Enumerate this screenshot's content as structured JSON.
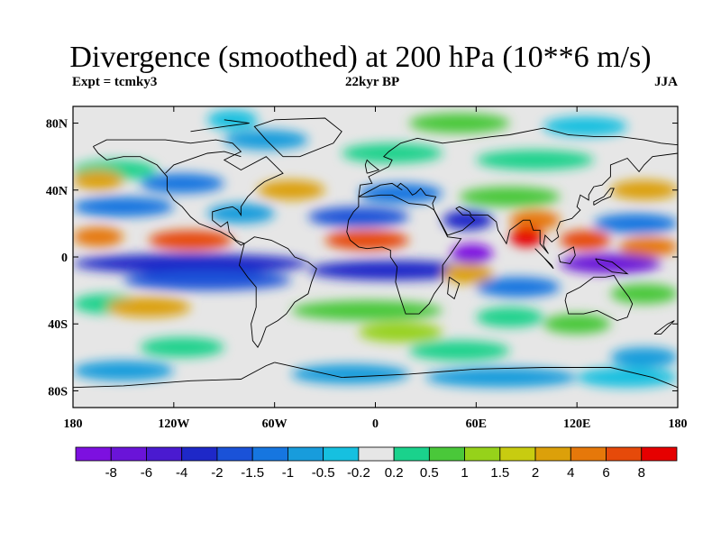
{
  "title": "Divergence (smoothed) at 200 hPa (10**6 m/s)",
  "subtitle_left": "Expt = tcmky3",
  "subtitle_center": "22kyr BP",
  "subtitle_right": "JJA",
  "lat_ticks": [
    {
      "label": "80N",
      "lat": 80
    },
    {
      "label": "40N",
      "lat": 40
    },
    {
      "label": "0",
      "lat": 0
    },
    {
      "label": "40S",
      "lat": -40
    },
    {
      "label": "80S",
      "lat": -80
    }
  ],
  "lon_ticks": [
    {
      "label": "180",
      "lon": -180
    },
    {
      "label": "120W",
      "lon": -120
    },
    {
      "label": "60W",
      "lon": -60
    },
    {
      "label": "0",
      "lon": 0
    },
    {
      "label": "60E",
      "lon": 60
    },
    {
      "label": "120E",
      "lon": 120
    },
    {
      "label": "180",
      "lon": 180
    }
  ],
  "colorbar": {
    "colors": [
      "#7d10e0",
      "#6a14d8",
      "#4a1ad0",
      "#1e28c8",
      "#1a52d8",
      "#1676e0",
      "#189cdc",
      "#16c0e0",
      "#e6e6e6",
      "#1ad28c",
      "#4ac83a",
      "#96d21a",
      "#c8cc10",
      "#dca00a",
      "#e6780a",
      "#e64a0a",
      "#e60000"
    ],
    "labels": [
      "-8",
      "-6",
      "-4",
      "-2",
      "-1.5",
      "-1",
      "-0.5",
      "-0.2",
      "0.2",
      "0.5",
      "1",
      "1.5",
      "2",
      "4",
      "6",
      "8"
    ]
  },
  "field_bands": [
    {
      "lat": 82,
      "lon_from": -100,
      "lon_to": -70,
      "color": "#16c0e0"
    },
    {
      "lat": 80,
      "lon_from": 20,
      "lon_to": 80,
      "color": "#4ac83a"
    },
    {
      "lat": 78,
      "lon_from": 100,
      "lon_to": 150,
      "color": "#16c0e0"
    },
    {
      "lat": 70,
      "lon_from": -90,
      "lon_to": -40,
      "color": "#189cdc"
    },
    {
      "lat": 62,
      "lon_from": -20,
      "lon_to": 40,
      "color": "#1ad28c"
    },
    {
      "lat": 58,
      "lon_from": 60,
      "lon_to": 130,
      "color": "#1ad28c"
    },
    {
      "lat": 52,
      "lon_from": -180,
      "lon_to": -130,
      "color": "#1ad28c"
    },
    {
      "lat": 46,
      "lon_from": -180,
      "lon_to": -150,
      "color": "#dca00a"
    },
    {
      "lat": 44,
      "lon_from": -140,
      "lon_to": -90,
      "color": "#1676e0"
    },
    {
      "lat": 40,
      "lon_from": -70,
      "lon_to": -30,
      "color": "#dca00a"
    },
    {
      "lat": 38,
      "lon_from": -10,
      "lon_to": 40,
      "color": "#1676e0"
    },
    {
      "lat": 36,
      "lon_from": 50,
      "lon_to": 110,
      "color": "#4ac83a"
    },
    {
      "lat": 40,
      "lon_from": 140,
      "lon_to": 180,
      "color": "#dca00a"
    },
    {
      "lat": 30,
      "lon_from": -180,
      "lon_to": -120,
      "color": "#1676e0"
    },
    {
      "lat": 26,
      "lon_from": -100,
      "lon_to": -60,
      "color": "#189cdc"
    },
    {
      "lat": 24,
      "lon_from": -40,
      "lon_to": 20,
      "color": "#1a52d8"
    },
    {
      "lat": 22,
      "lon_from": 40,
      "lon_to": 70,
      "color": "#1e28c8"
    },
    {
      "lat": 22,
      "lon_from": 80,
      "lon_to": 110,
      "color": "#e6780a"
    },
    {
      "lat": 20,
      "lon_from": 130,
      "lon_to": 180,
      "color": "#1676e0"
    },
    {
      "lat": 12,
      "lon_from": -180,
      "lon_to": -150,
      "color": "#e6780a"
    },
    {
      "lat": 10,
      "lon_from": -135,
      "lon_to": -85,
      "color": "#e64a0a"
    },
    {
      "lat": 10,
      "lon_from": -30,
      "lon_to": 20,
      "color": "#e64a0a"
    },
    {
      "lat": 12,
      "lon_from": 80,
      "lon_to": 100,
      "color": "#e60000"
    },
    {
      "lat": 10,
      "lon_from": 110,
      "lon_to": 140,
      "color": "#e64a0a"
    },
    {
      "lat": 6,
      "lon_from": 145,
      "lon_to": 180,
      "color": "#e6780a"
    },
    {
      "lat": 2,
      "lon_from": 45,
      "lon_to": 70,
      "color": "#7d10e0"
    },
    {
      "lat": -4,
      "lon_from": -180,
      "lon_to": -40,
      "color": "#1e28c8"
    },
    {
      "lat": -8,
      "lon_from": -40,
      "lon_to": 60,
      "color": "#1e28c8"
    },
    {
      "lat": -4,
      "lon_from": 110,
      "lon_to": 170,
      "color": "#6a14d8"
    },
    {
      "lat": -10,
      "lon_from": 40,
      "lon_to": 70,
      "color": "#dca00a"
    },
    {
      "lat": -14,
      "lon_from": -150,
      "lon_to": -50,
      "color": "#1a52d8"
    },
    {
      "lat": -18,
      "lon_from": 60,
      "lon_to": 110,
      "color": "#1676e0"
    },
    {
      "lat": -22,
      "lon_from": 140,
      "lon_to": 180,
      "color": "#4ac83a"
    },
    {
      "lat": -28,
      "lon_from": -180,
      "lon_to": -140,
      "color": "#1ad28c"
    },
    {
      "lat": -30,
      "lon_from": -160,
      "lon_to": -110,
      "color": "#dca00a"
    },
    {
      "lat": -32,
      "lon_from": -50,
      "lon_to": 40,
      "color": "#4ac83a"
    },
    {
      "lat": -36,
      "lon_from": 60,
      "lon_to": 100,
      "color": "#1ad28c"
    },
    {
      "lat": -40,
      "lon_from": 100,
      "lon_to": 140,
      "color": "#4ac83a"
    },
    {
      "lat": -45,
      "lon_from": -10,
      "lon_to": 40,
      "color": "#96d21a"
    },
    {
      "lat": -54,
      "lon_from": -140,
      "lon_to": -90,
      "color": "#1ad28c"
    },
    {
      "lat": -56,
      "lon_from": 20,
      "lon_to": 80,
      "color": "#1ad28c"
    },
    {
      "lat": -60,
      "lon_from": 140,
      "lon_to": 180,
      "color": "#189cdc"
    },
    {
      "lat": -68,
      "lon_from": -180,
      "lon_to": -120,
      "color": "#189cdc"
    },
    {
      "lat": -70,
      "lon_from": -50,
      "lon_to": 20,
      "color": "#189cdc"
    },
    {
      "lat": -72,
      "lon_from": 30,
      "lon_to": 120,
      "color": "#189cdc"
    },
    {
      "lat": -72,
      "lon_from": 120,
      "lon_to": 180,
      "color": "#16c0e0"
    }
  ],
  "coastlines": [
    [
      [
        -168,
        66
      ],
      [
        -160,
        70
      ],
      [
        -140,
        70
      ],
      [
        -125,
        70
      ],
      [
        -110,
        68
      ],
      [
        -95,
        70
      ],
      [
        -85,
        68
      ],
      [
        -80,
        63
      ],
      [
        -90,
        58
      ],
      [
        -80,
        52
      ],
      [
        -65,
        60
      ],
      [
        -60,
        55
      ],
      [
        -55,
        50
      ],
      [
        -66,
        45
      ],
      [
        -70,
        42
      ],
      [
        -76,
        36
      ],
      [
        -80,
        30
      ],
      [
        -80,
        25
      ],
      [
        -82,
        28
      ],
      [
        -85,
        30
      ],
      [
        -90,
        29
      ],
      [
        -97,
        27
      ],
      [
        -97,
        22
      ],
      [
        -92,
        18
      ],
      [
        -88,
        21
      ],
      [
        -87,
        15
      ],
      [
        -83,
        10
      ],
      [
        -78,
        8
      ],
      [
        -80,
        7
      ],
      [
        -85,
        11
      ],
      [
        -92,
        15
      ],
      [
        -105,
        20
      ],
      [
        -110,
        24
      ],
      [
        -115,
        30
      ],
      [
        -120,
        34
      ],
      [
        -124,
        40
      ],
      [
        -124,
        48
      ],
      [
        -130,
        55
      ],
      [
        -140,
        60
      ],
      [
        -150,
        60
      ],
      [
        -160,
        58
      ],
      [
        -165,
        62
      ],
      [
        -168,
        66
      ]
    ],
    [
      [
        -78,
        8
      ],
      [
        -72,
        12
      ],
      [
        -62,
        10
      ],
      [
        -52,
        5
      ],
      [
        -48,
        0
      ],
      [
        -40,
        -3
      ],
      [
        -35,
        -7
      ],
      [
        -38,
        -15
      ],
      [
        -40,
        -22
      ],
      [
        -48,
        -27
      ],
      [
        -53,
        -34
      ],
      [
        -58,
        -38
      ],
      [
        -65,
        -42
      ],
      [
        -68,
        -50
      ],
      [
        -70,
        -54
      ],
      [
        -73,
        -50
      ],
      [
        -74,
        -40
      ],
      [
        -71,
        -30
      ],
      [
        -71,
        -18
      ],
      [
        -76,
        -12
      ],
      [
        -81,
        -5
      ],
      [
        -80,
        0
      ],
      [
        -78,
        8
      ]
    ],
    [
      [
        -10,
        36
      ],
      [
        -5,
        36
      ],
      [
        3,
        37
      ],
      [
        10,
        37
      ],
      [
        20,
        32
      ],
      [
        30,
        31
      ],
      [
        32,
        30
      ],
      [
        35,
        28
      ],
      [
        43,
        12
      ],
      [
        51,
        11
      ],
      [
        45,
        2
      ],
      [
        40,
        -5
      ],
      [
        40,
        -15
      ],
      [
        35,
        -22
      ],
      [
        32,
        -28
      ],
      [
        26,
        -34
      ],
      [
        18,
        -34
      ],
      [
        15,
        -25
      ],
      [
        12,
        -15
      ],
      [
        13,
        -6
      ],
      [
        9,
        0
      ],
      [
        9,
        4
      ],
      [
        4,
        6
      ],
      [
        -5,
        5
      ],
      [
        -10,
        6
      ],
      [
        -15,
        10
      ],
      [
        -17,
        15
      ],
      [
        -16,
        22
      ],
      [
        -13,
        27
      ],
      [
        -10,
        30
      ],
      [
        -10,
        36
      ]
    ],
    [
      [
        -10,
        36
      ],
      [
        -9,
        43
      ],
      [
        -2,
        44
      ],
      [
        -4,
        48
      ],
      [
        2,
        51
      ],
      [
        8,
        54
      ],
      [
        10,
        58
      ],
      [
        5,
        60
      ],
      [
        8,
        63
      ],
      [
        15,
        68
      ],
      [
        25,
        71
      ],
      [
        40,
        68
      ],
      [
        55,
        70
      ],
      [
        70,
        72
      ],
      [
        80,
        73
      ],
      [
        100,
        77
      ],
      [
        115,
        73
      ],
      [
        130,
        72
      ],
      [
        145,
        72
      ],
      [
        160,
        70
      ],
      [
        170,
        68
      ],
      [
        180,
        67
      ],
      [
        180,
        62
      ],
      [
        165,
        60
      ],
      [
        160,
        55
      ],
      [
        157,
        51
      ],
      [
        150,
        59
      ],
      [
        140,
        55
      ],
      [
        140,
        48
      ],
      [
        135,
        43
      ],
      [
        130,
        42
      ],
      [
        127,
        37
      ],
      [
        127,
        34
      ],
      [
        122,
        37
      ],
      [
        120,
        30
      ],
      [
        122,
        28
      ],
      [
        117,
        23
      ],
      [
        110,
        21
      ],
      [
        108,
        16
      ],
      [
        109,
        12
      ],
      [
        105,
        9
      ],
      [
        101,
        13
      ],
      [
        100,
        7
      ],
      [
        103,
        2
      ],
      [
        98,
        8
      ],
      [
        98,
        16
      ],
      [
        94,
        16
      ],
      [
        92,
        22
      ],
      [
        88,
        22
      ],
      [
        80,
        16
      ],
      [
        78,
        8
      ],
      [
        73,
        16
      ],
      [
        72,
        21
      ],
      [
        67,
        25
      ],
      [
        57,
        25
      ],
      [
        56,
        27
      ],
      [
        50,
        30
      ],
      [
        48,
        29
      ],
      [
        52,
        25
      ],
      [
        56,
        25
      ],
      [
        59,
        22
      ],
      [
        52,
        16
      ],
      [
        43,
        13
      ],
      [
        35,
        28
      ],
      [
        34,
        32
      ],
      [
        36,
        36
      ],
      [
        30,
        37
      ],
      [
        27,
        41
      ],
      [
        24,
        38
      ],
      [
        22,
        37
      ],
      [
        19,
        41
      ],
      [
        15,
        44
      ],
      [
        13,
        42
      ],
      [
        16,
        40
      ],
      [
        10,
        44
      ],
      [
        3,
        43
      ],
      [
        -10,
        36
      ]
    ],
    [
      [
        114,
        -22
      ],
      [
        122,
        -18
      ],
      [
        130,
        -12
      ],
      [
        137,
        -12
      ],
      [
        142,
        -11
      ],
      [
        145,
        -16
      ],
      [
        151,
        -24
      ],
      [
        153,
        -28
      ],
      [
        150,
        -36
      ],
      [
        144,
        -38
      ],
      [
        138,
        -35
      ],
      [
        132,
        -32
      ],
      [
        124,
        -34
      ],
      [
        115,
        -34
      ],
      [
        113,
        -26
      ],
      [
        114,
        -22
      ]
    ],
    [
      [
        -55,
        60
      ],
      [
        -45,
        60
      ],
      [
        -25,
        68
      ],
      [
        -20,
        75
      ],
      [
        -30,
        83
      ],
      [
        -60,
        82
      ],
      [
        -72,
        78
      ],
      [
        -65,
        70
      ],
      [
        -55,
        60
      ]
    ],
    [
      [
        95,
        5
      ],
      [
        105,
        -5
      ],
      [
        106,
        -7
      ],
      [
        100,
        0
      ],
      [
        95,
        5
      ]
    ],
    [
      [
        109,
        1
      ],
      [
        118,
        6
      ],
      [
        119,
        1
      ],
      [
        116,
        -4
      ],
      [
        110,
        -3
      ],
      [
        109,
        1
      ]
    ],
    [
      [
        131,
        -1
      ],
      [
        141,
        -3
      ],
      [
        150,
        -10
      ],
      [
        141,
        -9
      ],
      [
        133,
        -4
      ],
      [
        131,
        -1
      ]
    ],
    [
      [
        130,
        31
      ],
      [
        135,
        34
      ],
      [
        140,
        36
      ],
      [
        142,
        41
      ],
      [
        140,
        41
      ],
      [
        136,
        36
      ],
      [
        130,
        33
      ],
      [
        130,
        31
      ]
    ],
    [
      [
        -5,
        50
      ],
      [
        2,
        52
      ],
      [
        -3,
        56
      ],
      [
        -5,
        58
      ],
      [
        -6,
        55
      ],
      [
        -5,
        50
      ]
    ],
    [
      [
        44,
        -12
      ],
      [
        50,
        -16
      ],
      [
        47,
        -25
      ],
      [
        43,
        -22
      ],
      [
        44,
        -12
      ]
    ],
    [
      [
        166,
        -46
      ],
      [
        174,
        -40
      ],
      [
        178,
        -38
      ],
      [
        170,
        -46
      ],
      [
        166,
        -46
      ]
    ],
    [
      [
        -60,
        -63
      ],
      [
        -20,
        -72
      ],
      [
        20,
        -70
      ],
      [
        60,
        -67
      ],
      [
        100,
        -66
      ],
      [
        140,
        -66
      ],
      [
        165,
        -72
      ],
      [
        180,
        -78
      ]
    ],
    [
      [
        -180,
        -78
      ],
      [
        -150,
        -77
      ],
      [
        -110,
        -74
      ],
      [
        -80,
        -73
      ],
      [
        -65,
        -65
      ],
      [
        -60,
        -63
      ]
    ],
    [
      [
        -125,
        50
      ],
      [
        -120,
        55
      ],
      [
        -100,
        62
      ],
      [
        -90,
        63
      ],
      [
        -80,
        60
      ]
    ],
    [
      [
        -110,
        75
      ],
      [
        -90,
        78
      ],
      [
        -75,
        80
      ],
      [
        -90,
        82
      ]
    ]
  ]
}
